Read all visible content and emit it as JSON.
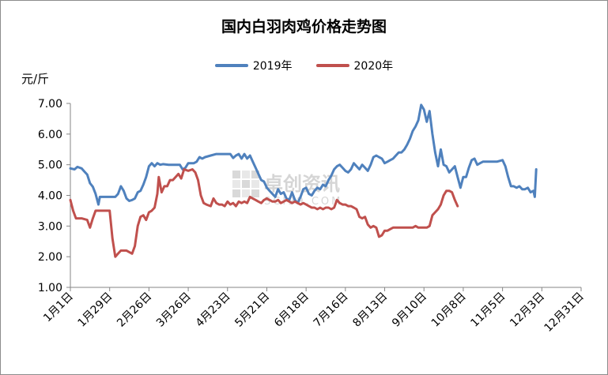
{
  "chart_data": {
    "type": "line",
    "title": "国内白羽肉鸡价格走势图",
    "unit_label": "元/斤",
    "ylim": [
      1.0,
      7.0
    ],
    "y_ticks": [
      "1.00",
      "2.00",
      "3.00",
      "4.00",
      "5.00",
      "6.00",
      "7.00"
    ],
    "x_ticks": [
      {
        "label": "1月1日",
        "day": 0
      },
      {
        "label": "1月29日",
        "day": 28
      },
      {
        "label": "2月26日",
        "day": 56
      },
      {
        "label": "3月26日",
        "day": 84
      },
      {
        "label": "4月23日",
        "day": 112
      },
      {
        "label": "5月21日",
        "day": 140
      },
      {
        "label": "6月18日",
        "day": 168
      },
      {
        "label": "7月16日",
        "day": 196
      },
      {
        "label": "8月13日",
        "day": 224
      },
      {
        "label": "9月10日",
        "day": 252
      },
      {
        "label": "10月8日",
        "day": 280
      },
      {
        "label": "11月5日",
        "day": 308
      },
      {
        "label": "12月3日",
        "day": 336
      },
      {
        "label": "12月31日",
        "day": 364
      }
    ],
    "grid": false,
    "legend_placement": "top-center",
    "series": [
      {
        "name": "2019年",
        "color": "#4f81bd",
        "points": [
          [
            0,
            4.88
          ],
          [
            3,
            4.85
          ],
          [
            5,
            4.93
          ],
          [
            8,
            4.88
          ],
          [
            10,
            4.78
          ],
          [
            12,
            4.68
          ],
          [
            14,
            4.4
          ],
          [
            16,
            4.28
          ],
          [
            18,
            4.05
          ],
          [
            20,
            3.7
          ],
          [
            21,
            3.95
          ],
          [
            24,
            3.95
          ],
          [
            28,
            3.95
          ],
          [
            32,
            3.95
          ],
          [
            34,
            4.05
          ],
          [
            36,
            4.3
          ],
          [
            38,
            4.15
          ],
          [
            40,
            3.9
          ],
          [
            42,
            3.82
          ],
          [
            44,
            3.85
          ],
          [
            46,
            3.9
          ],
          [
            48,
            4.1
          ],
          [
            50,
            4.15
          ],
          [
            52,
            4.35
          ],
          [
            54,
            4.6
          ],
          [
            56,
            4.95
          ],
          [
            58,
            5.05
          ],
          [
            60,
            4.95
          ],
          [
            62,
            5.05
          ],
          [
            64,
            5.0
          ],
          [
            66,
            5.02
          ],
          [
            70,
            5.0
          ],
          [
            74,
            5.0
          ],
          [
            78,
            5.0
          ],
          [
            80,
            4.85
          ],
          [
            82,
            4.9
          ],
          [
            84,
            5.05
          ],
          [
            88,
            5.05
          ],
          [
            90,
            5.1
          ],
          [
            92,
            5.25
          ],
          [
            94,
            5.2
          ],
          [
            96,
            5.25
          ],
          [
            100,
            5.3
          ],
          [
            104,
            5.35
          ],
          [
            110,
            5.35
          ],
          [
            114,
            5.35
          ],
          [
            116,
            5.22
          ],
          [
            118,
            5.3
          ],
          [
            120,
            5.35
          ],
          [
            122,
            5.2
          ],
          [
            124,
            5.35
          ],
          [
            126,
            5.2
          ],
          [
            128,
            5.3
          ],
          [
            130,
            5.1
          ],
          [
            132,
            4.9
          ],
          [
            134,
            4.7
          ],
          [
            136,
            4.5
          ],
          [
            138,
            4.45
          ],
          [
            140,
            4.25
          ],
          [
            142,
            4.15
          ],
          [
            144,
            4.05
          ],
          [
            146,
            3.95
          ],
          [
            148,
            4.2
          ],
          [
            150,
            4.05
          ],
          [
            152,
            4.1
          ],
          [
            154,
            3.9
          ],
          [
            156,
            3.85
          ],
          [
            158,
            4.1
          ],
          [
            160,
            3.85
          ],
          [
            162,
            3.75
          ],
          [
            164,
            3.95
          ],
          [
            166,
            4.2
          ],
          [
            168,
            4.25
          ],
          [
            170,
            4.05
          ],
          [
            172,
            4.0
          ],
          [
            174,
            4.15
          ],
          [
            176,
            4.25
          ],
          [
            178,
            4.2
          ],
          [
            180,
            4.35
          ],
          [
            182,
            4.3
          ],
          [
            184,
            4.5
          ],
          [
            186,
            4.65
          ],
          [
            188,
            4.85
          ],
          [
            190,
            4.95
          ],
          [
            192,
            5.0
          ],
          [
            194,
            4.9
          ],
          [
            196,
            4.8
          ],
          [
            198,
            4.75
          ],
          [
            200,
            4.85
          ],
          [
            202,
            5.05
          ],
          [
            204,
            4.95
          ],
          [
            206,
            4.85
          ],
          [
            208,
            5.0
          ],
          [
            210,
            4.9
          ],
          [
            212,
            4.8
          ],
          [
            214,
            5.0
          ],
          [
            216,
            5.25
          ],
          [
            218,
            5.3
          ],
          [
            220,
            5.25
          ],
          [
            222,
            5.2
          ],
          [
            224,
            5.05
          ],
          [
            226,
            5.1
          ],
          [
            228,
            5.15
          ],
          [
            230,
            5.2
          ],
          [
            232,
            5.3
          ],
          [
            234,
            5.4
          ],
          [
            236,
            5.4
          ],
          [
            238,
            5.5
          ],
          [
            240,
            5.65
          ],
          [
            242,
            5.85
          ],
          [
            244,
            6.1
          ],
          [
            246,
            6.25
          ],
          [
            248,
            6.45
          ],
          [
            250,
            6.95
          ],
          [
            252,
            6.8
          ],
          [
            254,
            6.4
          ],
          [
            256,
            6.75
          ],
          [
            258,
            6.0
          ],
          [
            260,
            5.4
          ],
          [
            262,
            4.95
          ],
          [
            264,
            5.5
          ],
          [
            266,
            5.0
          ],
          [
            268,
            4.95
          ],
          [
            270,
            4.75
          ],
          [
            272,
            4.85
          ],
          [
            274,
            4.95
          ],
          [
            276,
            4.6
          ],
          [
            278,
            4.25
          ],
          [
            280,
            4.6
          ],
          [
            282,
            4.6
          ],
          [
            284,
            4.9
          ],
          [
            286,
            5.15
          ],
          [
            288,
            5.2
          ],
          [
            290,
            5.0
          ],
          [
            292,
            5.05
          ],
          [
            294,
            5.1
          ],
          [
            296,
            5.1
          ],
          [
            300,
            5.1
          ],
          [
            304,
            5.1
          ],
          [
            308,
            5.15
          ],
          [
            310,
            4.95
          ],
          [
            312,
            4.6
          ],
          [
            314,
            4.3
          ],
          [
            316,
            4.3
          ],
          [
            318,
            4.25
          ],
          [
            320,
            4.3
          ],
          [
            322,
            4.2
          ],
          [
            324,
            4.2
          ],
          [
            326,
            4.25
          ],
          [
            328,
            4.1
          ],
          [
            330,
            4.15
          ],
          [
            331,
            3.95
          ],
          [
            332,
            4.85
          ]
        ]
      },
      {
        "name": "2020年",
        "color": "#c0504d",
        "points": [
          [
            0,
            3.85
          ],
          [
            2,
            3.5
          ],
          [
            4,
            3.25
          ],
          [
            8,
            3.25
          ],
          [
            12,
            3.2
          ],
          [
            14,
            2.95
          ],
          [
            16,
            3.25
          ],
          [
            18,
            3.5
          ],
          [
            22,
            3.5
          ],
          [
            26,
            3.5
          ],
          [
            28,
            3.5
          ],
          [
            30,
            2.6
          ],
          [
            32,
            2.0
          ],
          [
            34,
            2.1
          ],
          [
            36,
            2.2
          ],
          [
            40,
            2.2
          ],
          [
            44,
            2.1
          ],
          [
            46,
            2.35
          ],
          [
            48,
            3.0
          ],
          [
            50,
            3.3
          ],
          [
            52,
            3.35
          ],
          [
            54,
            3.2
          ],
          [
            56,
            3.45
          ],
          [
            58,
            3.5
          ],
          [
            60,
            3.6
          ],
          [
            62,
            4.05
          ],
          [
            63,
            4.6
          ],
          [
            65,
            4.1
          ],
          [
            67,
            4.3
          ],
          [
            69,
            4.3
          ],
          [
            71,
            4.5
          ],
          [
            73,
            4.5
          ],
          [
            75,
            4.6
          ],
          [
            77,
            4.7
          ],
          [
            79,
            4.55
          ],
          [
            81,
            4.85
          ],
          [
            84,
            4.8
          ],
          [
            87,
            4.85
          ],
          [
            89,
            4.75
          ],
          [
            91,
            4.5
          ],
          [
            93,
            4.0
          ],
          [
            95,
            3.75
          ],
          [
            97,
            3.7
          ],
          [
            100,
            3.65
          ],
          [
            102,
            3.9
          ],
          [
            104,
            3.75
          ],
          [
            106,
            3.7
          ],
          [
            108,
            3.7
          ],
          [
            110,
            3.65
          ],
          [
            112,
            3.8
          ],
          [
            114,
            3.7
          ],
          [
            116,
            3.75
          ],
          [
            118,
            3.65
          ],
          [
            120,
            3.8
          ],
          [
            122,
            3.75
          ],
          [
            124,
            3.8
          ],
          [
            126,
            3.75
          ],
          [
            128,
            3.95
          ],
          [
            130,
            3.9
          ],
          [
            132,
            3.85
          ],
          [
            134,
            3.8
          ],
          [
            136,
            3.75
          ],
          [
            138,
            3.85
          ],
          [
            140,
            3.9
          ],
          [
            142,
            3.85
          ],
          [
            144,
            3.8
          ],
          [
            146,
            3.8
          ],
          [
            148,
            3.85
          ],
          [
            150,
            3.75
          ],
          [
            152,
            3.8
          ],
          [
            154,
            3.85
          ],
          [
            156,
            3.8
          ],
          [
            158,
            3.75
          ],
          [
            160,
            3.8
          ],
          [
            162,
            3.75
          ],
          [
            164,
            3.7
          ],
          [
            166,
            3.75
          ],
          [
            168,
            3.7
          ],
          [
            170,
            3.65
          ],
          [
            172,
            3.6
          ],
          [
            174,
            3.6
          ],
          [
            176,
            3.55
          ],
          [
            178,
            3.6
          ],
          [
            180,
            3.55
          ],
          [
            182,
            3.6
          ],
          [
            184,
            3.6
          ],
          [
            186,
            3.55
          ],
          [
            188,
            3.6
          ],
          [
            190,
            3.85
          ],
          [
            192,
            3.75
          ],
          [
            194,
            3.7
          ],
          [
            196,
            3.7
          ],
          [
            198,
            3.65
          ],
          [
            200,
            3.65
          ],
          [
            202,
            3.6
          ],
          [
            204,
            3.55
          ],
          [
            206,
            3.3
          ],
          [
            208,
            3.25
          ],
          [
            210,
            3.3
          ],
          [
            212,
            3.05
          ],
          [
            214,
            2.95
          ],
          [
            216,
            3.0
          ],
          [
            218,
            2.95
          ],
          [
            220,
            2.65
          ],
          [
            222,
            2.7
          ],
          [
            224,
            2.85
          ],
          [
            226,
            2.85
          ],
          [
            228,
            2.9
          ],
          [
            230,
            2.95
          ],
          [
            232,
            2.95
          ],
          [
            236,
            2.95
          ],
          [
            240,
            2.95
          ],
          [
            244,
            2.95
          ],
          [
            246,
            3.0
          ],
          [
            248,
            2.95
          ],
          [
            250,
            2.95
          ],
          [
            252,
            2.95
          ],
          [
            254,
            2.95
          ],
          [
            256,
            3.0
          ],
          [
            258,
            3.35
          ],
          [
            260,
            3.45
          ],
          [
            262,
            3.55
          ],
          [
            264,
            3.7
          ],
          [
            266,
            4.0
          ],
          [
            268,
            4.15
          ],
          [
            270,
            4.15
          ],
          [
            272,
            4.1
          ],
          [
            274,
            3.85
          ],
          [
            276,
            3.65
          ]
        ]
      }
    ]
  },
  "watermark": {
    "text_cn": "卓创资讯",
    "text_en": "SCI99.COM"
  }
}
